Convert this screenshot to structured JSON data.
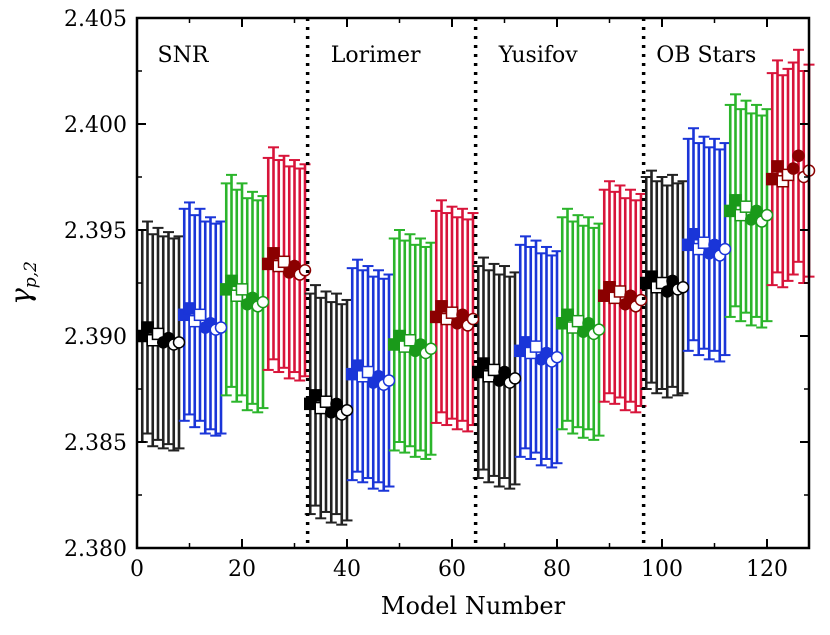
{
  "chart_data": {
    "type": "scatter",
    "title": "",
    "xlabel": "Model Number",
    "ylabel_base": "γ",
    "ylabel_sub": "p,2",
    "xlim": [
      0,
      128
    ],
    "ylim": [
      2.38,
      2.405
    ],
    "xticks": [
      0,
      20,
      40,
      60,
      80,
      100,
      120
    ],
    "xtick_labels": [
      "0",
      "20",
      "40",
      "60",
      "80",
      "100",
      "120"
    ],
    "yticks": [
      2.38,
      2.385,
      2.39,
      2.395,
      2.4,
      2.405
    ],
    "ytick_labels": [
      "2.380",
      "2.385",
      "2.390",
      "2.395",
      "2.400",
      "2.405"
    ],
    "dividers": [
      32.5,
      64.5,
      96.5
    ],
    "regions": [
      {
        "name": "SNR",
        "x_label_at": 2
      },
      {
        "name": "Lorimer",
        "x_label_at": 35
      },
      {
        "name": "Yusifov",
        "x_label_at": 67
      },
      {
        "name": "OB Stars",
        "x_label_at": 97
      }
    ],
    "marker_cycle": [
      "square-filled",
      "square-open",
      "circle-filled",
      "circle-open"
    ],
    "series": [
      {
        "name": "SNR black",
        "color": "#000000",
        "errorbar_color": "#222222",
        "marker_color": "#000000",
        "x": [
          1,
          2,
          3,
          4,
          5,
          6,
          7,
          8
        ],
        "y": [
          2.39,
          2.3904,
          2.3898,
          2.3901,
          2.3897,
          2.3899,
          2.3896,
          2.3897
        ],
        "err": [
          0.005,
          0.005,
          0.005,
          0.005,
          0.005,
          0.005,
          0.005,
          0.005
        ]
      },
      {
        "name": "SNR blue",
        "color": "#1a35d8",
        "errorbar_color": "#1a35d8",
        "marker_color": "#1a35d8",
        "x": [
          9,
          10,
          11,
          12,
          13,
          14,
          15,
          16
        ],
        "y": [
          2.391,
          2.3913,
          2.3907,
          2.391,
          2.3904,
          2.3906,
          2.3903,
          2.3904
        ],
        "err": [
          0.005,
          0.005,
          0.005,
          0.005,
          0.005,
          0.005,
          0.005,
          0.005
        ]
      },
      {
        "name": "SNR green",
        "color": "#2bb52b",
        "errorbar_color": "#2bb52b",
        "marker_color": "#1a9a1a",
        "x": [
          17,
          18,
          19,
          20,
          21,
          22,
          23,
          24
        ],
        "y": [
          2.3922,
          2.3926,
          2.3919,
          2.3922,
          2.3915,
          2.3918,
          2.3914,
          2.3916
        ],
        "err": [
          0.005,
          0.005,
          0.005,
          0.005,
          0.005,
          0.005,
          0.005,
          0.005
        ]
      },
      {
        "name": "SNR red",
        "color": "#d8143a",
        "errorbar_color": "#d8143a",
        "marker_color": "#8b0000",
        "x": [
          25,
          26,
          27,
          28,
          29,
          30,
          31,
          32
        ],
        "y": [
          2.3934,
          2.3939,
          2.3933,
          2.3935,
          2.393,
          2.3933,
          2.3929,
          2.3931
        ],
        "err": [
          0.005,
          0.005,
          0.005,
          0.005,
          0.005,
          0.005,
          0.005,
          0.005
        ]
      },
      {
        "name": "Lorimer black",
        "color": "#000000",
        "errorbar_color": "#222222",
        "marker_color": "#000000",
        "x": [
          33,
          34,
          35,
          36,
          37,
          38,
          39,
          40
        ],
        "y": [
          2.3868,
          2.3872,
          2.3866,
          2.3869,
          2.3864,
          2.3868,
          2.3863,
          2.3865
        ],
        "err": [
          0.0052,
          0.0052,
          0.0052,
          0.0052,
          0.0052,
          0.0052,
          0.0052,
          0.0052
        ]
      },
      {
        "name": "Lorimer blue",
        "color": "#1a35d8",
        "errorbar_color": "#1a35d8",
        "marker_color": "#1a35d8",
        "x": [
          41,
          42,
          43,
          44,
          45,
          46,
          47,
          48
        ],
        "y": [
          2.3882,
          2.3886,
          2.3881,
          2.3883,
          2.3878,
          2.3881,
          2.3877,
          2.3879
        ],
        "err": [
          0.005,
          0.005,
          0.005,
          0.005,
          0.005,
          0.005,
          0.005,
          0.005
        ]
      },
      {
        "name": "Lorimer green",
        "color": "#2bb52b",
        "errorbar_color": "#2bb52b",
        "marker_color": "#1a9a1a",
        "x": [
          49,
          50,
          51,
          52,
          53,
          54,
          55,
          56
        ],
        "y": [
          2.3896,
          2.39,
          2.3895,
          2.3898,
          2.3893,
          2.3896,
          2.3892,
          2.3894
        ],
        "err": [
          0.005,
          0.005,
          0.005,
          0.005,
          0.005,
          0.005,
          0.005,
          0.005
        ]
      },
      {
        "name": "Lorimer red",
        "color": "#d8143a",
        "errorbar_color": "#d8143a",
        "marker_color": "#8b0000",
        "x": [
          57,
          58,
          59,
          60,
          61,
          62,
          63,
          64
        ],
        "y": [
          2.3909,
          2.3914,
          2.3908,
          2.3911,
          2.3906,
          2.391,
          2.3905,
          2.3908
        ],
        "err": [
          0.005,
          0.005,
          0.005,
          0.005,
          0.005,
          0.005,
          0.005,
          0.005
        ]
      },
      {
        "name": "Yusifov black",
        "color": "#000000",
        "errorbar_color": "#222222",
        "marker_color": "#000000",
        "x": [
          65,
          66,
          67,
          68,
          69,
          70,
          71,
          72
        ],
        "y": [
          2.3883,
          2.3887,
          2.3881,
          2.3884,
          2.3879,
          2.3883,
          2.3878,
          2.388
        ],
        "err": [
          0.005,
          0.005,
          0.005,
          0.005,
          0.005,
          0.005,
          0.005,
          0.005
        ]
      },
      {
        "name": "Yusifov blue",
        "color": "#1a35d8",
        "errorbar_color": "#1a35d8",
        "marker_color": "#1a35d8",
        "x": [
          73,
          74,
          75,
          76,
          77,
          78,
          79,
          80
        ],
        "y": [
          2.3893,
          2.3897,
          2.3892,
          2.3895,
          2.3889,
          2.3892,
          2.3888,
          2.389
        ],
        "err": [
          0.005,
          0.005,
          0.005,
          0.005,
          0.005,
          0.005,
          0.005,
          0.005
        ]
      },
      {
        "name": "Yusifov green",
        "color": "#2bb52b",
        "errorbar_color": "#2bb52b",
        "marker_color": "#1a9a1a",
        "x": [
          81,
          82,
          83,
          84,
          85,
          86,
          87,
          88
        ],
        "y": [
          2.3906,
          2.391,
          2.3904,
          2.3907,
          2.3902,
          2.3906,
          2.3901,
          2.3903
        ],
        "err": [
          0.005,
          0.005,
          0.005,
          0.005,
          0.005,
          0.005,
          0.005,
          0.005
        ]
      },
      {
        "name": "Yusifov red",
        "color": "#d8143a",
        "errorbar_color": "#d8143a",
        "marker_color": "#8b0000",
        "x": [
          89,
          90,
          91,
          92,
          93,
          94,
          95,
          96
        ],
        "y": [
          2.3919,
          2.3923,
          2.3918,
          2.3921,
          2.3915,
          2.3919,
          2.3914,
          2.3917
        ],
        "err": [
          0.005,
          0.005,
          0.005,
          0.005,
          0.005,
          0.005,
          0.005,
          0.005
        ]
      },
      {
        "name": "OB Stars black",
        "color": "#000000",
        "errorbar_color": "#222222",
        "marker_color": "#000000",
        "x": [
          97,
          98,
          99,
          100,
          101,
          102,
          103,
          104
        ],
        "y": [
          2.3925,
          2.3928,
          2.3923,
          2.3925,
          2.3921,
          2.3926,
          2.3922,
          2.3923
        ],
        "err": [
          0.005,
          0.005,
          0.005,
          0.005,
          0.005,
          0.005,
          0.005,
          0.005
        ]
      },
      {
        "name": "OB Stars blue",
        "color": "#1a35d8",
        "errorbar_color": "#1a35d8",
        "marker_color": "#1a35d8",
        "x": [
          105,
          106,
          107,
          108,
          109,
          110,
          111,
          112
        ],
        "y": [
          2.3943,
          2.3948,
          2.3941,
          2.3944,
          2.3939,
          2.3943,
          2.3938,
          2.3941
        ],
        "err": [
          0.005,
          0.005,
          0.005,
          0.005,
          0.005,
          0.005,
          0.005,
          0.005
        ]
      },
      {
        "name": "OB Stars green",
        "color": "#2bb52b",
        "errorbar_color": "#2bb52b",
        "marker_color": "#1a9a1a",
        "x": [
          113,
          114,
          115,
          116,
          117,
          118,
          119,
          120
        ],
        "y": [
          2.3959,
          2.3964,
          2.3957,
          2.3961,
          2.3955,
          2.3959,
          2.3954,
          2.3957
        ],
        "err": [
          0.005,
          0.005,
          0.005,
          0.005,
          0.005,
          0.005,
          0.005,
          0.005
        ]
      },
      {
        "name": "OB Stars red",
        "color": "#d8143a",
        "errorbar_color": "#d8143a",
        "marker_color": "#8b0000",
        "x": [
          121,
          122,
          123,
          124,
          125,
          126,
          127,
          128
        ],
        "y": [
          2.3974,
          2.398,
          2.3973,
          2.3976,
          2.3979,
          2.3985,
          2.3975,
          2.3978
        ],
        "err": [
          0.005,
          0.005,
          0.005,
          0.005,
          0.005,
          0.005,
          0.005,
          0.005
        ]
      }
    ]
  }
}
